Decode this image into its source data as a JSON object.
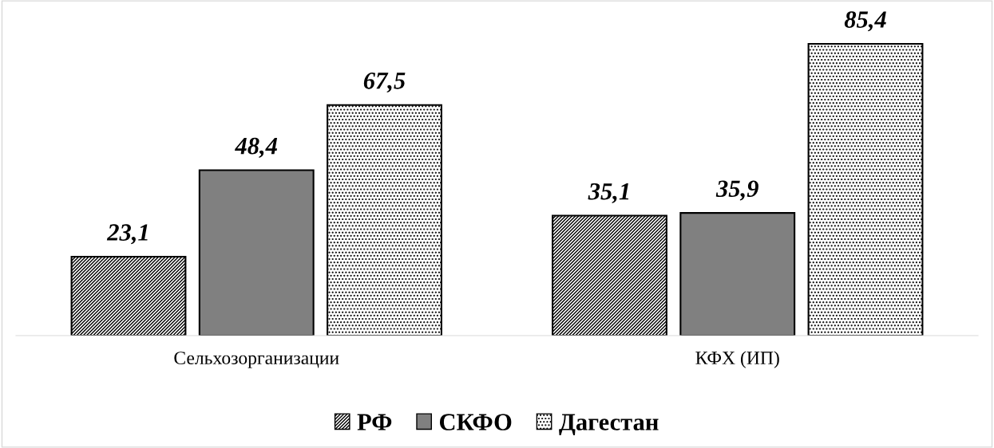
{
  "chart_data": {
    "type": "bar",
    "categories": [
      "Сельхозорганизации",
      "КФХ (ИП)"
    ],
    "series": [
      {
        "name": "РФ",
        "color": "#000000",
        "values": [
          23.1,
          35.1
        ],
        "value_labels": [
          "23,1",
          "35,1"
        ]
      },
      {
        "name": "СКФО",
        "color": "#808080",
        "values": [
          48.4,
          35.9
        ],
        "value_labels": [
          "48,4",
          "35,9"
        ]
      },
      {
        "name": "Дагестан",
        "color": "#000000",
        "values": [
          67.5,
          85.4
        ],
        "value_labels": [
          "67,5",
          "85,4"
        ]
      }
    ],
    "legend": "bottom",
    "grid": false
  }
}
